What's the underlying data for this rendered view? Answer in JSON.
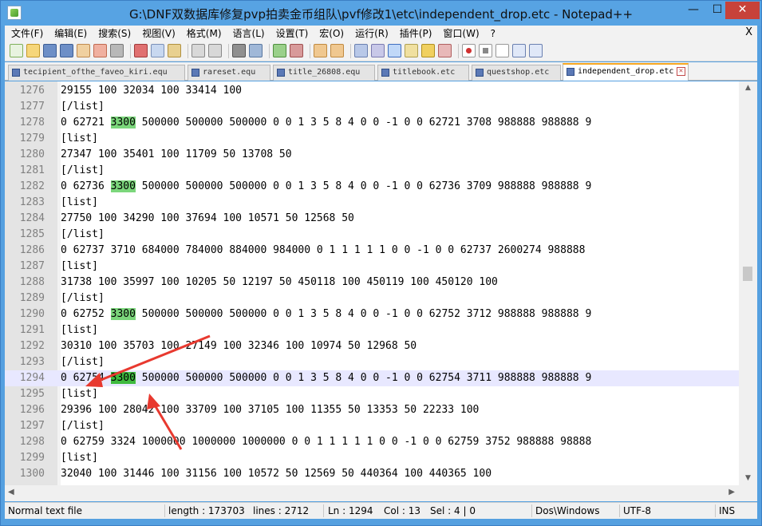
{
  "window": {
    "title": "G:\\DNF双数据库修复pvp拍卖金币组队\\pvf修改1\\etc\\independent_drop.etc - Notepad++",
    "controls": {
      "minimize": "—",
      "maximize": "☐",
      "close": "✕"
    }
  },
  "menu": {
    "items": [
      "文件(F)",
      "编辑(E)",
      "搜索(S)",
      "视图(V)",
      "格式(M)",
      "语言(L)",
      "设置(T)",
      "宏(O)",
      "运行(R)",
      "插件(P)",
      "窗口(W)",
      "?"
    ],
    "close": "X"
  },
  "tabs": [
    {
      "label": "tecipient_ofthe_faveo_kiri.equ",
      "active": false
    },
    {
      "label": "rareset.equ",
      "active": false
    },
    {
      "label": "title_26808.equ",
      "active": false
    },
    {
      "label": "titlebook.etc",
      "active": false
    },
    {
      "label": "questshop.etc",
      "active": false
    },
    {
      "label": "independent_drop.etc",
      "active": true
    }
  ],
  "editor": {
    "highlight_term": "3300",
    "current_line": "1294",
    "lines": [
      {
        "n": "1276",
        "text": "29155 100 32034 100 33414 100"
      },
      {
        "n": "1277",
        "text": "[/list]"
      },
      {
        "n": "1278",
        "text": "0 62721 3300 500000 500000 500000 0 0 1 3 5 8 4 0 0 -1 0 0 62721 3708 988888 988888 9"
      },
      {
        "n": "1279",
        "text": "[list]"
      },
      {
        "n": "1280",
        "text": "27347 100 35401 100 11709 50 13708 50"
      },
      {
        "n": "1281",
        "text": "[/list]"
      },
      {
        "n": "1282",
        "text": "0 62736 3300 500000 500000 500000 0 0 1 3 5 8 4 0 0 -1 0 0 62736 3709 988888 988888 9"
      },
      {
        "n": "1283",
        "text": "[list]"
      },
      {
        "n": "1284",
        "text": "27750 100 34290 100 37694 100 10571 50 12568 50"
      },
      {
        "n": "1285",
        "text": "[/list]"
      },
      {
        "n": "1286",
        "text": "0 62737 3710 684000 784000 884000 984000 0 1 1 1 1 1 0 0 -1 0 0 62737 2600274 988888"
      },
      {
        "n": "1287",
        "text": "[list]"
      },
      {
        "n": "1288",
        "text": "31738 100 35997 100 10205 50 12197 50 450118 100 450119 100 450120 100"
      },
      {
        "n": "1289",
        "text": "[/list]"
      },
      {
        "n": "1290",
        "text": "0 62752 3300 500000 500000 500000 0 0 1 3 5 8 4 0 0 -1 0 0 62752 3712 988888 988888 9"
      },
      {
        "n": "1291",
        "text": "[list]"
      },
      {
        "n": "1292",
        "text": "30310 100 35703 100 27149 100 32346 100 10974 50 12968 50"
      },
      {
        "n": "1293",
        "text": "[/list]"
      },
      {
        "n": "1294",
        "text": "0 62754 3300 500000 500000 500000 0 0 1 3 5 8 4 0 0 -1 0 0 62754 3711 988888 988888 9"
      },
      {
        "n": "1295",
        "text": "[list]"
      },
      {
        "n": "1296",
        "text": "29396 100 28042 100 33709 100 37105 100 11355 50 13353 50 22233 100"
      },
      {
        "n": "1297",
        "text": "[/list]"
      },
      {
        "n": "1298",
        "text": "0 62759 3324 1000000 1000000 1000000 0 0 1 1 1 1 1 0 0 -1 0 0 62759 3752 988888 98888"
      },
      {
        "n": "1299",
        "text": "[list]"
      },
      {
        "n": "1300",
        "text": "32040 100 31446 100 31156 100 10572 50 12569 50 440364 100 440365 100"
      }
    ]
  },
  "status": {
    "file_type": "Normal text file",
    "length": "length : 173703",
    "lines": "lines : 2712",
    "ln": "Ln : 1294",
    "col": "Col : 13",
    "sel": "Sel : 4 | 0",
    "eol": "Dos\\Windows",
    "encoding": "UTF-8",
    "mode": "INS"
  },
  "colors": {
    "highlight": "#7bd67b",
    "highlight_current": "#3fba3f",
    "current_line_bg": "#e8e8ff",
    "annotation_arrow": "#e8392f"
  }
}
